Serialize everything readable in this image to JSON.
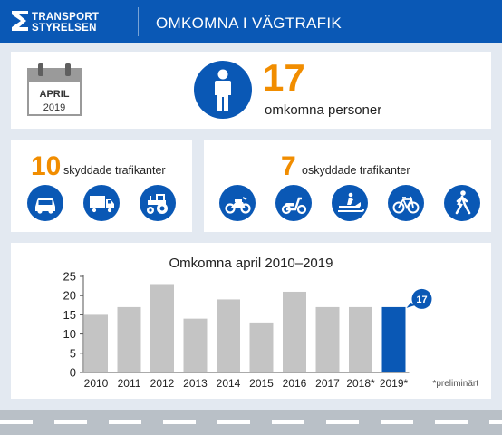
{
  "header": {
    "logo_line1": "TRANSPORT",
    "logo_line2": "STYRELSEN",
    "title": "OMKOMNA I VÄGTRAFIK"
  },
  "period": {
    "month": "APRIL",
    "year": "2019"
  },
  "total": {
    "count": "17",
    "label": "omkomna personer"
  },
  "protected": {
    "count": "10",
    "label": "skyddade trafikanter",
    "icons": [
      "car-icon",
      "truck-icon",
      "tractor-icon"
    ]
  },
  "unprotected": {
    "count": "7",
    "label": "oskyddade trafikanter",
    "icons": [
      "motorcycle-icon",
      "moped-icon",
      "snowmobile-icon",
      "bicycle-icon",
      "pedestrian-icon"
    ]
  },
  "colors": {
    "brand_blue": "#0a58b5",
    "accent_orange": "#f18d00",
    "bar_gray": "#c4c4c4",
    "background": "#e3e9f1"
  },
  "chart_data": {
    "type": "bar",
    "title": "Omkomna april 2010–2019",
    "categories": [
      "2010",
      "2011",
      "2012",
      "2013",
      "2014",
      "2015",
      "2016",
      "2017",
      "2018*",
      "2019*"
    ],
    "values": [
      15,
      17,
      23,
      14,
      19,
      13,
      21,
      17,
      17,
      17
    ],
    "highlight_index": 9,
    "highlight_label": "17",
    "ylim": [
      0,
      25
    ],
    "yticks": [
      0,
      5,
      10,
      15,
      20,
      25
    ],
    "grid": false,
    "footnote": "*preliminärt"
  }
}
